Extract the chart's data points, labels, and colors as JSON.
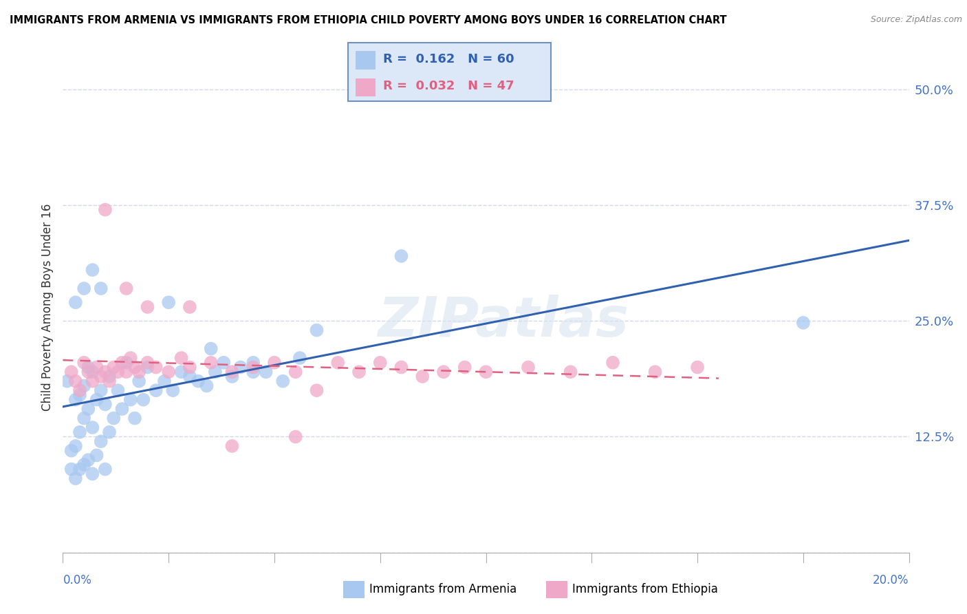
{
  "title": "IMMIGRANTS FROM ARMENIA VS IMMIGRANTS FROM ETHIOPIA CHILD POVERTY AMONG BOYS UNDER 16 CORRELATION CHART",
  "source": "Source: ZipAtlas.com",
  "ylabel": "Child Poverty Among Boys Under 16",
  "xlim": [
    0.0,
    0.2
  ],
  "ylim": [
    0.0,
    0.53
  ],
  "ytick_vals": [
    0.0,
    0.125,
    0.25,
    0.375,
    0.5
  ],
  "ytick_labels": [
    "",
    "12.5%",
    "25.0%",
    "37.5%",
    "50.0%"
  ],
  "armenia_R": 0.162,
  "armenia_N": 60,
  "ethiopia_R": 0.032,
  "ethiopia_N": 47,
  "armenia_color": "#a8c8f0",
  "ethiopia_color": "#f0a8c8",
  "armenia_line_color": "#3060b0",
  "ethiopia_line_color": "#e06080",
  "grid_color": "#d0d8e8",
  "watermark": "ZIPatlas",
  "armenia_x": [
    0.001,
    0.002,
    0.002,
    0.003,
    0.003,
    0.003,
    0.004,
    0.004,
    0.004,
    0.005,
    0.005,
    0.005,
    0.006,
    0.006,
    0.006,
    0.007,
    0.007,
    0.007,
    0.008,
    0.008,
    0.009,
    0.009,
    0.01,
    0.01,
    0.011,
    0.011,
    0.012,
    0.013,
    0.014,
    0.015,
    0.016,
    0.017,
    0.018,
    0.019,
    0.02,
    0.022,
    0.024,
    0.026,
    0.028,
    0.03,
    0.032,
    0.034,
    0.036,
    0.038,
    0.04,
    0.042,
    0.045,
    0.048,
    0.052,
    0.056,
    0.003,
    0.005,
    0.007,
    0.009,
    0.025,
    0.035,
    0.045,
    0.06,
    0.08,
    0.175
  ],
  "armenia_y": [
    0.185,
    0.09,
    0.11,
    0.08,
    0.115,
    0.165,
    0.09,
    0.13,
    0.17,
    0.095,
    0.145,
    0.18,
    0.1,
    0.155,
    0.2,
    0.085,
    0.135,
    0.195,
    0.105,
    0.165,
    0.12,
    0.175,
    0.09,
    0.16,
    0.13,
    0.19,
    0.145,
    0.175,
    0.155,
    0.205,
    0.165,
    0.145,
    0.185,
    0.165,
    0.2,
    0.175,
    0.185,
    0.175,
    0.195,
    0.19,
    0.185,
    0.18,
    0.195,
    0.205,
    0.19,
    0.2,
    0.205,
    0.195,
    0.185,
    0.21,
    0.27,
    0.285,
    0.305,
    0.285,
    0.27,
    0.22,
    0.195,
    0.24,
    0.32,
    0.248
  ],
  "ethiopia_x": [
    0.002,
    0.003,
    0.004,
    0.005,
    0.006,
    0.007,
    0.008,
    0.009,
    0.01,
    0.011,
    0.012,
    0.013,
    0.014,
    0.015,
    0.016,
    0.017,
    0.018,
    0.02,
    0.022,
    0.025,
    0.028,
    0.03,
    0.035,
    0.04,
    0.045,
    0.05,
    0.055,
    0.06,
    0.065,
    0.07,
    0.075,
    0.08,
    0.085,
    0.09,
    0.095,
    0.1,
    0.11,
    0.12,
    0.13,
    0.14,
    0.15,
    0.01,
    0.015,
    0.02,
    0.03,
    0.04,
    0.055
  ],
  "ethiopia_y": [
    0.195,
    0.185,
    0.175,
    0.205,
    0.195,
    0.185,
    0.2,
    0.19,
    0.195,
    0.185,
    0.2,
    0.195,
    0.205,
    0.195,
    0.21,
    0.2,
    0.195,
    0.205,
    0.2,
    0.195,
    0.21,
    0.2,
    0.205,
    0.195,
    0.2,
    0.205,
    0.195,
    0.175,
    0.205,
    0.195,
    0.205,
    0.2,
    0.19,
    0.195,
    0.2,
    0.195,
    0.2,
    0.195,
    0.205,
    0.195,
    0.2,
    0.37,
    0.285,
    0.265,
    0.265,
    0.115,
    0.125
  ]
}
